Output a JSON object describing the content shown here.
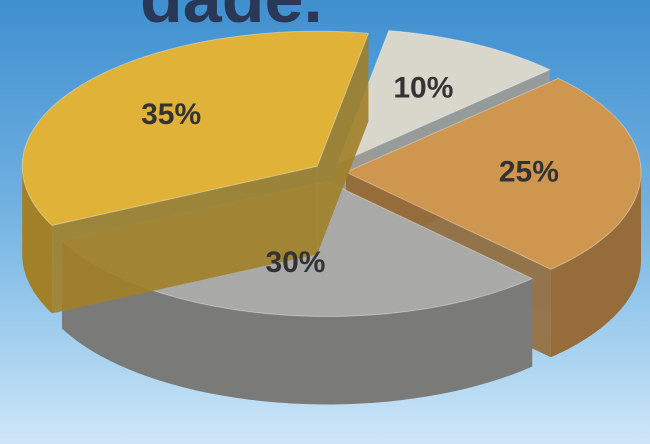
{
  "chart_data": {
    "type": "pie",
    "title": "dade.",
    "values": [
      10,
      25,
      30,
      35
    ],
    "value_labels": [
      "10%",
      "25%",
      "30%",
      "35%"
    ],
    "colors": [
      "#d9d7cc",
      "#cf9650",
      "#a9aaa8",
      "#e0b238"
    ]
  }
}
